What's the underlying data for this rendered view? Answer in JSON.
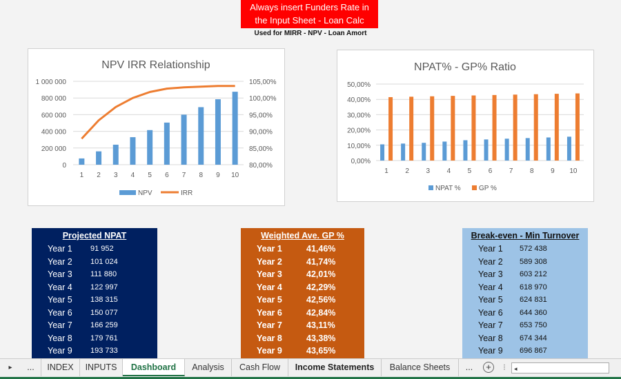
{
  "banner": {
    "line1": "Always insert Funders Rate in",
    "line2": "the Input Sheet - Loan Calc",
    "note": "Used for MIRR - NPV - Loan Amort"
  },
  "chart_data": [
    {
      "type": "bar+line",
      "title": "NPV IRR Relationship",
      "categories": [
        "1",
        "2",
        "3",
        "4",
        "5",
        "6",
        "7",
        "8",
        "9",
        "10"
      ],
      "y_left": {
        "ticks": [
          "0",
          "200 000",
          "400 000",
          "600 000",
          "800 000",
          "1 000 000"
        ],
        "range": [
          0,
          1000000
        ]
      },
      "y_right": {
        "ticks": [
          "80,00%",
          "85,00%",
          "90,00%",
          "95,00%",
          "100,00%",
          "105,00%"
        ],
        "range": [
          80,
          105
        ]
      },
      "series": [
        {
          "name": "NPV",
          "type": "bar",
          "axis": "left",
          "color": "#5b9bd5",
          "values": [
            75000,
            160000,
            240000,
            330000,
            415000,
            505000,
            600000,
            690000,
            785000,
            875000
          ]
        },
        {
          "name": "IRR",
          "type": "line",
          "axis": "right",
          "color": "#ed7d31",
          "values": [
            87.8,
            93.3,
            97.3,
            100.0,
            101.8,
            102.8,
            103.2,
            103.4,
            103.6,
            103.6
          ]
        }
      ],
      "legend": "bottom",
      "grid": true
    },
    {
      "type": "bar",
      "title": "NPAT% - GP% Ratio",
      "categories": [
        "1",
        "2",
        "3",
        "4",
        "5",
        "6",
        "7",
        "8",
        "9",
        "10"
      ],
      "y": {
        "ticks": [
          "0,00%",
          "10,00%",
          "20,00%",
          "30,00%",
          "40,00%",
          "50,00%"
        ],
        "range": [
          0,
          50
        ]
      },
      "series": [
        {
          "name": "NPAT %",
          "color": "#5b9bd5",
          "values": [
            10.6,
            11.1,
            11.6,
            12.4,
            13.3,
            13.8,
            14.3,
            14.7,
            15.1,
            15.6
          ]
        },
        {
          "name": "GP %",
          "color": "#ed7d31",
          "values": [
            41.46,
            41.74,
            42.01,
            42.29,
            42.56,
            42.84,
            43.11,
            43.38,
            43.65,
            43.9
          ]
        }
      ],
      "legend": "bottom",
      "grid": true
    }
  ],
  "tables": [
    {
      "title": "Projected NPAT",
      "bg": "#002060",
      "fg": "#ffffff",
      "rows": [
        [
          "Year 1",
          "91 952"
        ],
        [
          "Year 2",
          "101 024"
        ],
        [
          "Year 3",
          "111 880"
        ],
        [
          "Year 4",
          "122 997"
        ],
        [
          "Year 5",
          "138 315"
        ],
        [
          "Year 6",
          "150 077"
        ],
        [
          "Year 7",
          "166 259"
        ],
        [
          "Year 8",
          "179 761"
        ],
        [
          "Year 9",
          "193 733"
        ]
      ]
    },
    {
      "title": "Weighted Ave. GP %",
      "bg": "#c55a11",
      "fg": "#ffffff",
      "rows": [
        [
          "Year 1",
          "41,46%"
        ],
        [
          "Year 2",
          "41,74%"
        ],
        [
          "Year 3",
          "42,01%"
        ],
        [
          "Year 4",
          "42,29%"
        ],
        [
          "Year 5",
          "42,56%"
        ],
        [
          "Year 6",
          "42,84%"
        ],
        [
          "Year 7",
          "43,11%"
        ],
        [
          "Year 8",
          "43,38%"
        ],
        [
          "Year 9",
          "43,65%"
        ]
      ]
    },
    {
      "title": "Break-even - Min Turnover",
      "bg": "#9dc3e6",
      "fg": "#111111",
      "rows": [
        [
          "Year 1",
          "572 438"
        ],
        [
          "Year 2",
          "589 308"
        ],
        [
          "Year 3",
          "603 212"
        ],
        [
          "Year 4",
          "618 970"
        ],
        [
          "Year 5",
          "624 831"
        ],
        [
          "Year 6",
          "644 360"
        ],
        [
          "Year 7",
          "653 750"
        ],
        [
          "Year 8",
          "674 344"
        ],
        [
          "Year 9",
          "696 867"
        ]
      ]
    }
  ],
  "sheet_tabs": {
    "more_left": "...",
    "items": [
      "INDEX",
      "INPUTS",
      "Dashboard",
      "Analysis",
      "Cash Flow",
      "Income Statements",
      "Balance Sheets"
    ],
    "active": "Dashboard",
    "more_right": "..."
  }
}
